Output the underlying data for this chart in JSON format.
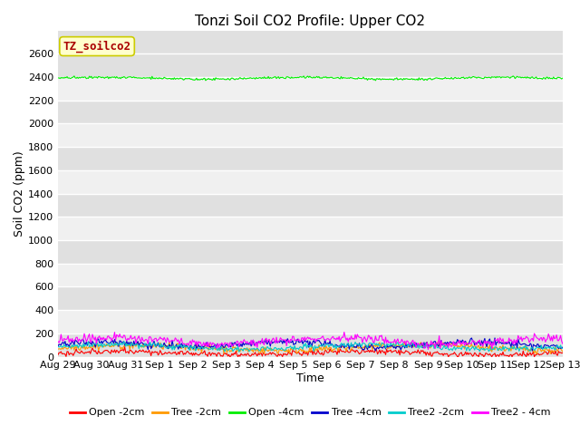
{
  "title": "Tonzi Soil CO2 Profile: Upper CO2",
  "xlabel": "Time",
  "ylabel": "Soil CO2 (ppm)",
  "ylim": [
    0,
    2800
  ],
  "yticks": [
    0,
    200,
    400,
    600,
    800,
    1000,
    1200,
    1400,
    1600,
    1800,
    2000,
    2200,
    2400,
    2600
  ],
  "xtick_labels": [
    "Aug 29",
    "Aug 30",
    "Aug 31",
    "Sep 1",
    "Sep 2",
    "Sep 3",
    "Sep 4",
    "Sep 5",
    "Sep 6",
    "Sep 7",
    "Sep 8",
    "Sep 9",
    "Sep 10",
    "Sep 11",
    "Sep 12",
    "Sep 13"
  ],
  "n_points": 500,
  "legend_label": "TZ_soilco2",
  "legend_label_color": "#aa0000",
  "legend_box_facecolor": "#ffffcc",
  "legend_box_edgecolor": "#cccc00",
  "series": [
    {
      "label": "Open -2cm",
      "color": "#ff0000",
      "base": 30,
      "amp": 15,
      "noise_scale": 12
    },
    {
      "label": "Tree -2cm",
      "color": "#ff9900",
      "base": 75,
      "amp": 20,
      "noise_scale": 15
    },
    {
      "label": "Open -4cm",
      "color": "#00ee00",
      "base": 2390,
      "amp": 8,
      "noise_scale": 5
    },
    {
      "label": "Tree -4cm",
      "color": "#0000cc",
      "base": 105,
      "amp": 22,
      "noise_scale": 15
    },
    {
      "label": "Tree2 -2cm",
      "color": "#00cccc",
      "base": 85,
      "amp": 20,
      "noise_scale": 12
    },
    {
      "label": "Tree2 - 4cm",
      "color": "#ff00ff",
      "base": 135,
      "amp": 28,
      "noise_scale": 18
    }
  ],
  "bg_dark": "#e0e0e0",
  "bg_light": "#f0f0f0",
  "grid_color": "#ffffff",
  "title_fontsize": 11,
  "tick_fontsize": 8,
  "label_fontsize": 9
}
